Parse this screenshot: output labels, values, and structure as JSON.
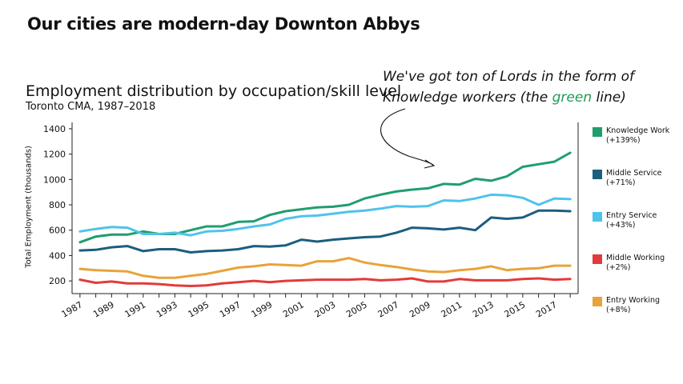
{
  "headline": "Our cities are modern-day Downton Abbys",
  "annotation": {
    "before": "We've got ton of Lords in the form of Knowledge workers (the ",
    "highlight": "green",
    "after": " line)"
  },
  "chart_data": {
    "type": "line",
    "title": "Employment distribution by occupation/skill level",
    "subtitle": "Toronto CMA, 1987–2018",
    "ylabel": "Total Employment (thousands)",
    "xlabel": "",
    "ylim": [
      100,
      1450
    ],
    "yticks": [
      200,
      400,
      600,
      800,
      1000,
      1200,
      1400
    ],
    "x": [
      1987,
      1988,
      1989,
      1990,
      1991,
      1992,
      1993,
      1994,
      1995,
      1996,
      1997,
      1998,
      1999,
      2000,
      2001,
      2002,
      2003,
      2004,
      2005,
      2006,
      2007,
      2008,
      2009,
      2010,
      2011,
      2012,
      2013,
      2014,
      2015,
      2016,
      2017,
      2018
    ],
    "xtick_labels": [
      "1987",
      "1989",
      "1991",
      "1993",
      "1995",
      "1997",
      "1999",
      "2001",
      "2003",
      "2005",
      "2007",
      "2009",
      "2011",
      "2013",
      "2015",
      "2017"
    ],
    "grid": false,
    "legend_position": "right",
    "series": [
      {
        "name": "Knowledge Work (+139%)",
        "color": "#1f9e6e",
        "values": [
          505,
          550,
          565,
          565,
          590,
          570,
          570,
          600,
          630,
          630,
          665,
          670,
          720,
          750,
          765,
          780,
          785,
          800,
          850,
          880,
          905,
          920,
          930,
          965,
          960,
          1005,
          990,
          1025,
          1100,
          1120,
          1140,
          1210
        ]
      },
      {
        "name": "Middle Service (+71%)",
        "color": "#1b5e7e",
        "values": [
          440,
          445,
          465,
          475,
          435,
          450,
          450,
          425,
          435,
          440,
          450,
          475,
          470,
          480,
          525,
          510,
          525,
          535,
          545,
          550,
          580,
          620,
          615,
          605,
          620,
          600,
          700,
          690,
          700,
          755,
          755,
          750
        ]
      },
      {
        "name": "Entry Service (+43%)",
        "color": "#4fc3ea",
        "values": [
          590,
          610,
          625,
          620,
          570,
          570,
          580,
          560,
          590,
          595,
          610,
          630,
          645,
          690,
          710,
          715,
          730,
          745,
          755,
          770,
          790,
          785,
          790,
          835,
          830,
          850,
          880,
          875,
          855,
          800,
          850,
          845
        ]
      },
      {
        "name": "Middle Working (+2%)",
        "color": "#e23b3b",
        "values": [
          210,
          185,
          195,
          180,
          180,
          175,
          165,
          160,
          165,
          180,
          190,
          200,
          190,
          200,
          205,
          210,
          210,
          210,
          215,
          205,
          210,
          220,
          195,
          195,
          215,
          205,
          205,
          205,
          215,
          220,
          210,
          215
        ]
      },
      {
        "name": "Entry Working (+8%)",
        "color": "#e8a33a",
        "values": [
          295,
          285,
          280,
          275,
          240,
          225,
          225,
          240,
          255,
          280,
          305,
          315,
          330,
          325,
          320,
          355,
          355,
          380,
          345,
          325,
          310,
          290,
          275,
          270,
          285,
          295,
          315,
          285,
          295,
          300,
          320,
          320
        ]
      }
    ]
  }
}
